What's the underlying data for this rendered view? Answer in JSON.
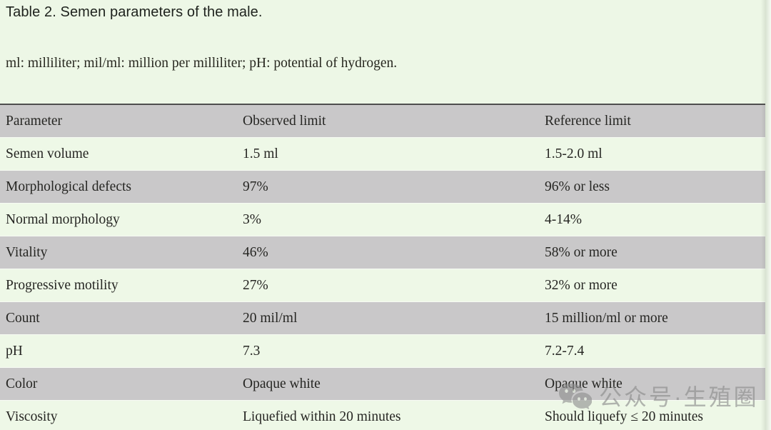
{
  "page": {
    "title": "Table 2. Semen parameters of the male.",
    "caption": "ml: milliliter; mil/ml: million per milliliter; pH: potential of hydrogen."
  },
  "table": {
    "columns": [
      "Parameter",
      "Observed limit",
      "Reference limit"
    ],
    "rows": [
      {
        "parameter": "Semen volume",
        "observed": "1.5 ml",
        "reference": "1.5-2.0 ml"
      },
      {
        "parameter": "Morphological defects",
        "observed": "97%",
        "reference": "96% or less"
      },
      {
        "parameter": "Normal morphology",
        "observed": "3%",
        "reference": "4-14%"
      },
      {
        "parameter": "Vitality",
        "observed": "46%",
        "reference": "58% or more"
      },
      {
        "parameter": "Progressive motility",
        "observed": "27%",
        "reference": "32% or more"
      },
      {
        "parameter": "Count",
        "observed": "20 mil/ml",
        "reference": "15 million/ml or more"
      },
      {
        "parameter": "pH",
        "observed": "7.3",
        "reference": "7.2-7.4"
      },
      {
        "parameter": "Color",
        "observed": "Opaque white",
        "reference": "Opaque white"
      },
      {
        "parameter": "Viscosity",
        "observed": "Liquefied within 20 minutes",
        "reference": "Should liquefy ≤ 20 minutes"
      }
    ]
  },
  "watermark": {
    "icon": "wechat-icon",
    "text": "公众号·生殖圈"
  },
  "colors": {
    "page_bg": "#edf7e6",
    "row_gray": "#c9c8c9",
    "row_green": "#eef8e7",
    "text": "#262623",
    "border_top": "#4e4e4e",
    "border_bottom": "#3b3b36",
    "watermark": "#8a8a8a"
  }
}
